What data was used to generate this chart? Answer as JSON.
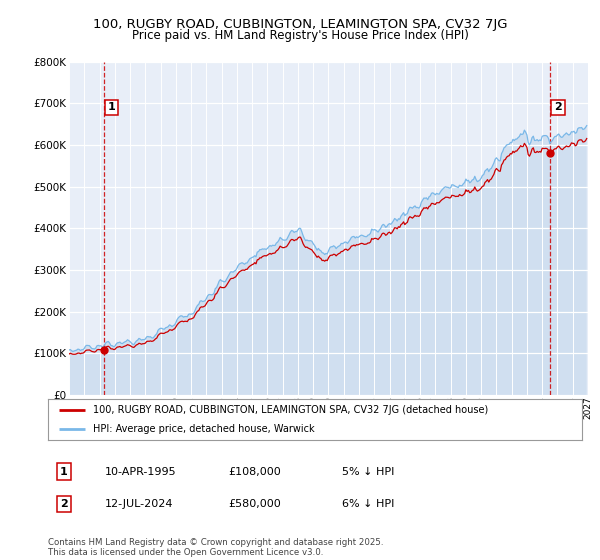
{
  "title1": "100, RUGBY ROAD, CUBBINGTON, LEAMINGTON SPA, CV32 7JG",
  "title2": "Price paid vs. HM Land Registry's House Price Index (HPI)",
  "background_color": "#ffffff",
  "plot_bg_color": "#e8eef8",
  "grid_color": "#ffffff",
  "red_line_color": "#cc0000",
  "blue_line_color": "#7ab8e8",
  "blue_fill_color": "#d0dff0",
  "sale1_price": 108000,
  "sale1_x": 1995.27,
  "sale2_price": 580000,
  "sale2_x": 2024.54,
  "legend_line1": "100, RUGBY ROAD, CUBBINGTON, LEAMINGTON SPA, CV32 7JG (detached house)",
  "legend_line2": "HPI: Average price, detached house, Warwick",
  "footer": "Contains HM Land Registry data © Crown copyright and database right 2025.\nThis data is licensed under the Open Government Licence v3.0.",
  "xmin": 1993.0,
  "xmax": 2027.0,
  "ymin": 0,
  "ymax": 800000,
  "yticks": [
    0,
    100000,
    200000,
    300000,
    400000,
    500000,
    600000,
    700000,
    800000
  ]
}
